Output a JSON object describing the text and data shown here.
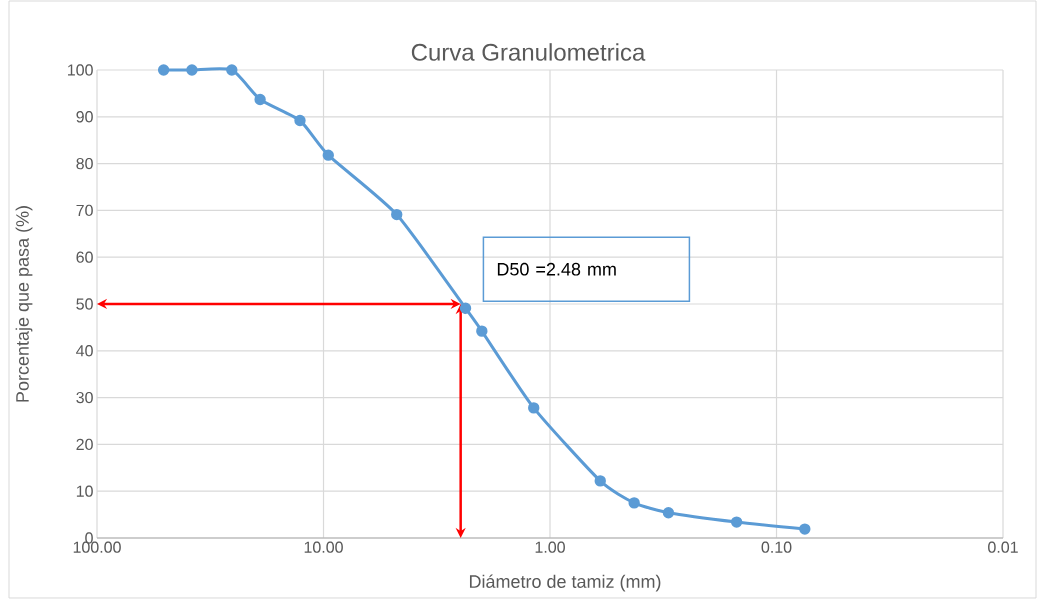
{
  "chart_data": {
    "type": "line",
    "title": "Curva Granulometrica",
    "xlabel": "Diámetro de tamiz (mm)",
    "ylabel": "Porcentaje que pasa (%)",
    "x": [
      50.8,
      38.1,
      25.4,
      19.05,
      12.7,
      9.525,
      4.75,
      2.36,
      2.0,
      1.18,
      0.6,
      0.425,
      0.3,
      0.15,
      0.075
    ],
    "series": [
      {
        "color": "#5b9bd5",
        "values": [
          100,
          100,
          100,
          93.7,
          89.2,
          81.8,
          69.1,
          49.1,
          44.2,
          27.8,
          12.2,
          7.5,
          5.4,
          3.4,
          1.9
        ]
      }
    ],
    "log": "x",
    "xlim": [
      100,
      0.01
    ],
    "ylim": [
      0,
      100
    ],
    "xticks": [
      {
        "value": 100,
        "label": "100.00"
      },
      {
        "value": 10,
        "label": "10.00"
      },
      {
        "value": 1,
        "label": "1.00"
      },
      {
        "value": 0.1,
        "label": "0.10"
      },
      {
        "value": 0.01,
        "label": "0.01"
      }
    ],
    "yticks": [
      0,
      10,
      20,
      30,
      40,
      50,
      60,
      70,
      80,
      90,
      100
    ],
    "grid": true,
    "marker": "circle",
    "line_style": "solid",
    "annotations": [
      {
        "text": "D50 =2.48 mm",
        "x": 2.48,
        "y": 50
      }
    ]
  }
}
